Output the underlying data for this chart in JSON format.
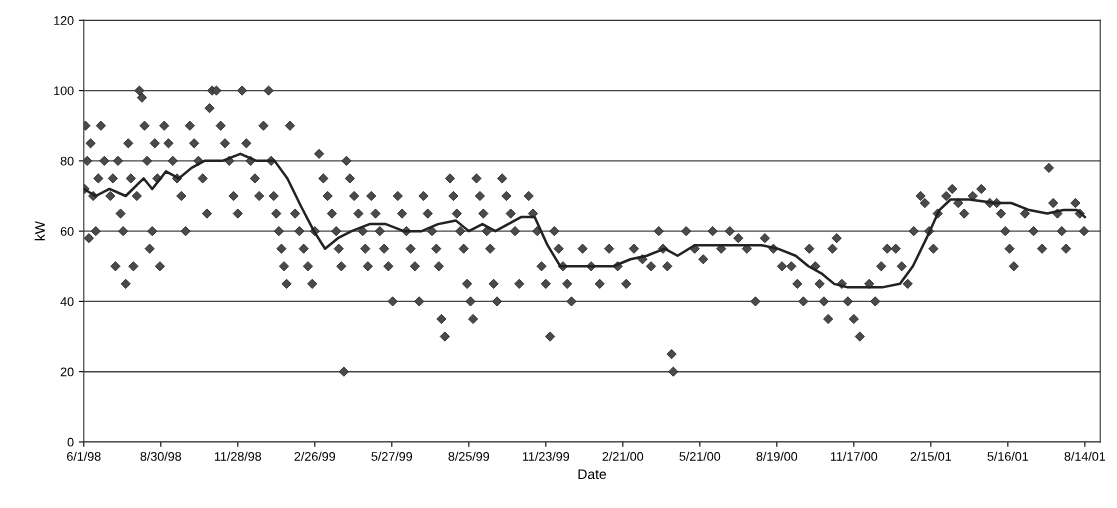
{
  "chart_data": {
    "type": "scatter",
    "xlabel": "Date",
    "ylabel": "kW",
    "ylim": [
      0,
      120
    ],
    "yticks": [
      0,
      20,
      40,
      60,
      80,
      100,
      120
    ],
    "xlim": [
      "1998-06-01",
      "2001-09-01"
    ],
    "xticks": [
      {
        "value": "1998-06-01",
        "label": "6/1/98"
      },
      {
        "value": "1998-08-30",
        "label": "8/30/98"
      },
      {
        "value": "1998-11-28",
        "label": "11/28/98"
      },
      {
        "value": "1999-02-26",
        "label": "2/26/99"
      },
      {
        "value": "1999-05-27",
        "label": "5/27/99"
      },
      {
        "value": "1999-08-25",
        "label": "8/25/99"
      },
      {
        "value": "1999-11-23",
        "label": "11/23/99"
      },
      {
        "value": "2000-02-21",
        "label": "2/21/00"
      },
      {
        "value": "2000-05-21",
        "label": "5/21/00"
      },
      {
        "value": "2000-08-19",
        "label": "8/19/00"
      },
      {
        "value": "2000-11-17",
        "label": "11/17/00"
      },
      {
        "value": "2001-02-15",
        "label": "2/15/01"
      },
      {
        "value": "2001-05-16",
        "label": "5/16/01"
      },
      {
        "value": "2001-08-14",
        "label": "8/14/01"
      }
    ],
    "grid": "y",
    "series": [
      {
        "marker": "diamond",
        "color": "#4a4a4a",
        "x": [
          "1998-06-02",
          "1998-06-03",
          "1998-06-05",
          "1998-06-07",
          "1998-06-09",
          "1998-06-12",
          "1998-06-15",
          "1998-06-18",
          "1998-06-21",
          "1998-06-25",
          "1998-07-02",
          "1998-07-05",
          "1998-07-08",
          "1998-07-11",
          "1998-07-14",
          "1998-07-17",
          "1998-07-20",
          "1998-07-23",
          "1998-07-26",
          "1998-07-29",
          "1998-08-02",
          "1998-08-05",
          "1998-08-08",
          "1998-08-11",
          "1998-08-14",
          "1998-08-17",
          "1998-08-20",
          "1998-08-23",
          "1998-08-26",
          "1998-08-29",
          "1998-09-03",
          "1998-09-08",
          "1998-09-13",
          "1998-09-18",
          "1998-09-23",
          "1998-09-28",
          "1998-10-03",
          "1998-10-08",
          "1998-10-13",
          "1998-10-18",
          "1998-10-23",
          "1998-10-26",
          "1998-10-29",
          "1998-11-03",
          "1998-11-08",
          "1998-11-13",
          "1998-11-18",
          "1998-11-23",
          "1998-11-28",
          "1998-12-03",
          "1998-12-08",
          "1998-12-13",
          "1998-12-18",
          "1998-12-23",
          "1998-12-28",
          "1999-01-03",
          "1999-01-06",
          "1999-01-09",
          "1999-01-12",
          "1999-01-15",
          "1999-01-18",
          "1999-01-21",
          "1999-01-24",
          "1999-01-28",
          "1999-02-03",
          "1999-02-08",
          "1999-02-13",
          "1999-02-18",
          "1999-02-23",
          "1999-02-26",
          "1999-03-03",
          "1999-03-08",
          "1999-03-13",
          "1999-03-18",
          "1999-03-23",
          "1999-03-26",
          "1999-03-29",
          "1999-04-01",
          "1999-04-04",
          "1999-04-08",
          "1999-04-13",
          "1999-04-18",
          "1999-04-23",
          "1999-04-26",
          "1999-04-29",
          "1999-05-03",
          "1999-05-08",
          "1999-05-13",
          "1999-05-18",
          "1999-05-23",
          "1999-05-28",
          "1999-06-03",
          "1999-06-08",
          "1999-06-13",
          "1999-06-18",
          "1999-06-23",
          "1999-06-28",
          "1999-07-03",
          "1999-07-08",
          "1999-07-13",
          "1999-07-18",
          "1999-07-21",
          "1999-07-24",
          "1999-07-28",
          "1999-08-03",
          "1999-08-07",
          "1999-08-11",
          "1999-08-15",
          "1999-08-19",
          "1999-08-23",
          "1999-08-27",
          "1999-08-30",
          "1999-09-03",
          "1999-09-07",
          "1999-09-11",
          "1999-09-15",
          "1999-09-19",
          "1999-09-23",
          "1999-09-27",
          "1999-10-03",
          "1999-10-08",
          "1999-10-13",
          "1999-10-18",
          "1999-10-23",
          "1999-11-03",
          "1999-11-08",
          "1999-11-13",
          "1999-11-18",
          "1999-11-23",
          "1999-11-28",
          "1999-12-03",
          "1999-12-08",
          "1999-12-13",
          "1999-12-18",
          "1999-12-23",
          "2000-01-05",
          "2000-01-15",
          "2000-01-25",
          "2000-02-05",
          "2000-02-15",
          "2000-02-25",
          "2000-03-05",
          "2000-03-15",
          "2000-03-25",
          "2000-04-03",
          "2000-04-08",
          "2000-04-13",
          "2000-04-18",
          "2000-04-20",
          "2000-05-05",
          "2000-05-15",
          "2000-05-25",
          "2000-06-05",
          "2000-06-15",
          "2000-06-25",
          "2000-07-05",
          "2000-07-15",
          "2000-07-25",
          "2000-08-05",
          "2000-08-15",
          "2000-08-25",
          "2000-09-05",
          "2000-09-12",
          "2000-09-19",
          "2000-09-26",
          "2000-10-03",
          "2000-10-08",
          "2000-10-13",
          "2000-10-18",
          "2000-10-23",
          "2000-10-28",
          "2000-11-03",
          "2000-11-10",
          "2000-11-17",
          "2000-11-24",
          "2000-12-05",
          "2000-12-12",
          "2000-12-19",
          "2000-12-26",
          "2001-01-05",
          "2001-01-12",
          "2001-01-19",
          "2001-01-26",
          "2001-02-03",
          "2001-02-08",
          "2001-02-13",
          "2001-02-18",
          "2001-02-23",
          "2001-03-05",
          "2001-03-12",
          "2001-03-19",
          "2001-03-26",
          "2001-04-05",
          "2001-04-15",
          "2001-04-25",
          "2001-05-03",
          "2001-05-08",
          "2001-05-13",
          "2001-05-18",
          "2001-05-23",
          "2001-06-05",
          "2001-06-15",
          "2001-06-25",
          "2001-07-03",
          "2001-07-08",
          "2001-07-13",
          "2001-07-18",
          "2001-07-23",
          "2001-08-03",
          "2001-08-08",
          "2001-08-13"
        ],
        "values": [
          72,
          90,
          80,
          58,
          85,
          70,
          60,
          75,
          90,
          80,
          70,
          75,
          50,
          80,
          65,
          60,
          45,
          85,
          75,
          50,
          70,
          100,
          98,
          90,
          80,
          55,
          60,
          85,
          75,
          50,
          90,
          85,
          80,
          75,
          70,
          60,
          90,
          85,
          80,
          75,
          65,
          95,
          100,
          100,
          90,
          85,
          80,
          70,
          65,
          100,
          85,
          80,
          75,
          70,
          90,
          100,
          80,
          70,
          65,
          60,
          55,
          50,
          45,
          90,
          65,
          60,
          55,
          50,
          45,
          60,
          82,
          75,
          70,
          65,
          60,
          55,
          50,
          20,
          80,
          75,
          70,
          65,
          60,
          55,
          50,
          70,
          65,
          60,
          55,
          50,
          40,
          70,
          65,
          60,
          55,
          50,
          40,
          70,
          65,
          60,
          55,
          50,
          35,
          30,
          75,
          70,
          65,
          60,
          55,
          45,
          40,
          35,
          75,
          70,
          65,
          60,
          55,
          45,
          40,
          75,
          70,
          65,
          60,
          45,
          70,
          65,
          60,
          50,
          45,
          30,
          60,
          55,
          50,
          45,
          40,
          55,
          50,
          45,
          55,
          50,
          45,
          55,
          52,
          50,
          60,
          55,
          50,
          25,
          20,
          60,
          55,
          52,
          60,
          55,
          60,
          58,
          55,
          40,
          58,
          55,
          50,
          50,
          45,
          40,
          55,
          50,
          45,
          40,
          35,
          55,
          58,
          45,
          40,
          35,
          30,
          45,
          40,
          50,
          55,
          55,
          50,
          45,
          60,
          70,
          68,
          60,
          55,
          65,
          70,
          72,
          68,
          65,
          70,
          72,
          68,
          68,
          65,
          60,
          55,
          50,
          65,
          60,
          55,
          78,
          68,
          65,
          60,
          55,
          68,
          65,
          60
        ]
      },
      {
        "type": "line",
        "marker": "none",
        "color": "#222222",
        "x": [
          "1998-06-01",
          "1998-06-15",
          "1998-07-01",
          "1998-07-20",
          "1998-08-10",
          "1998-08-20",
          "1998-09-05",
          "1998-09-20",
          "1998-10-05",
          "1998-10-20",
          "1998-11-10",
          "1998-12-01",
          "1998-12-20",
          "1999-01-10",
          "1999-01-25",
          "1999-02-10",
          "1999-02-25",
          "1999-03-10",
          "1999-03-25",
          "1999-04-10",
          "1999-05-01",
          "1999-05-20",
          "1999-06-10",
          "1999-07-01",
          "1999-07-20",
          "1999-08-10",
          "1999-08-25",
          "1999-09-10",
          "1999-09-25",
          "1999-10-10",
          "1999-10-25",
          "1999-11-10",
          "1999-11-25",
          "1999-12-10",
          "1999-12-25",
          "2000-01-20",
          "2000-02-10",
          "2000-03-01",
          "2000-03-20",
          "2000-04-10",
          "2000-04-25",
          "2000-05-15",
          "2000-06-10",
          "2000-07-10",
          "2000-08-01",
          "2000-08-20",
          "2000-09-10",
          "2000-09-25",
          "2000-10-10",
          "2000-10-25",
          "2000-11-10",
          "2000-12-01",
          "2000-12-20",
          "2001-01-10",
          "2001-01-25",
          "2001-02-10",
          "2001-02-25",
          "2001-03-10",
          "2001-04-01",
          "2001-05-01",
          "2001-05-20",
          "2001-06-10",
          "2001-07-01",
          "2001-07-20",
          "2001-08-05",
          "2001-08-14"
        ],
        "values": [
          72,
          70,
          72,
          70,
          75,
          72,
          77,
          75,
          78,
          80,
          80,
          82,
          80,
          80,
          75,
          67,
          60,
          55,
          58,
          60,
          62,
          62,
          60,
          60,
          62,
          63,
          60,
          62,
          60,
          62,
          64,
          64,
          56,
          50,
          50,
          50,
          50,
          52,
          53,
          55,
          53,
          56,
          56,
          56,
          56,
          55,
          53,
          50,
          48,
          45,
          44,
          44,
          44,
          45,
          50,
          58,
          66,
          69,
          69,
          68,
          68,
          66,
          65,
          66,
          66,
          64
        ]
      }
    ]
  }
}
